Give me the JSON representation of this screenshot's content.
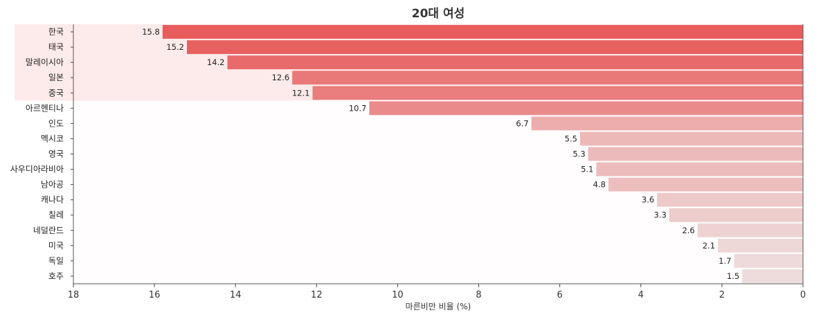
{
  "chart_data": {
    "type": "bar",
    "orientation": "horizontal",
    "title": "20대 여성",
    "xlabel": "마른비만 비율 (%)",
    "ylabel": "",
    "xlim": [
      18,
      0
    ],
    "x_inverted": true,
    "xticks": [
      18,
      16,
      14,
      12,
      10,
      8,
      6,
      4,
      2,
      0
    ],
    "grid": false,
    "highlighted_top_n": 5,
    "colors": {
      "bar_max": "#e85c5c",
      "bar_min": "#eedcdc",
      "highlight_band": "#fdeaea"
    },
    "categories": [
      "한국",
      "태국",
      "말레이시아",
      "일본",
      "중국",
      "아르헨티나",
      "인도",
      "멕시코",
      "영국",
      "사우디아라비아",
      "남아공",
      "캐나다",
      "칠레",
      "네덜란드",
      "미국",
      "독일",
      "호주"
    ],
    "values": [
      15.8,
      15.2,
      14.2,
      12.6,
      12.1,
      10.7,
      6.7,
      5.5,
      5.3,
      5.1,
      4.8,
      3.6,
      3.3,
      2.6,
      2.1,
      1.7,
      1.5
    ],
    "value_labels": [
      "15.8",
      "15.2",
      "14.2",
      "12.6",
      "12.1",
      "10.7",
      "6.7",
      "5.5",
      "5.3",
      "5.1",
      "4.8",
      "3.6",
      "3.3",
      "2.6",
      "2.1",
      "1.7",
      "1.5"
    ]
  }
}
